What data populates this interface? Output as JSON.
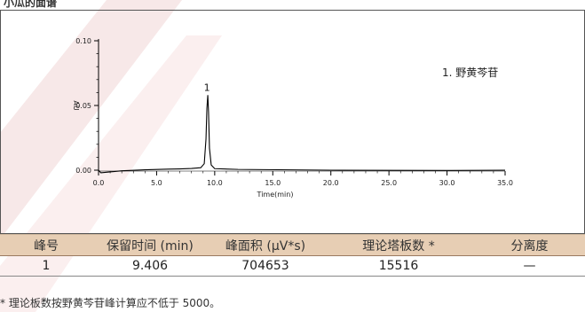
{
  "header": {
    "partial_title": "小瓜的面谱"
  },
  "chart_data": {
    "type": "line",
    "xlabel": "Time(min)",
    "ylabel": "AU",
    "xlim": [
      0,
      35
    ],
    "ylim": [
      0,
      0.1
    ],
    "x_ticks": [
      "0.0",
      "5.0",
      "10.0",
      "15.0",
      "20.0",
      "25.0",
      "30.0",
      "35.0"
    ],
    "y_ticks": [
      "0.00",
      "0.05",
      "0.10"
    ],
    "peak_label": "1",
    "legend": "1.  野黄芩苷",
    "series": [
      {
        "x": [
          0,
          0.2,
          2,
          4,
          6,
          7,
          8,
          8.8,
          9.1,
          9.25,
          9.33,
          9.406,
          9.47,
          9.55,
          9.7,
          10.0,
          12,
          20,
          30,
          35
        ],
        "y": [
          0,
          -0.002,
          -0.0005,
          0.0003,
          0.0008,
          0.001,
          0.0013,
          0.0019,
          0.005,
          0.024,
          0.048,
          0.058,
          0.045,
          0.017,
          0.004,
          0.0012,
          0.0006,
          0.0,
          -0.0002,
          0.0
        ]
      }
    ]
  },
  "table": {
    "headers": [
      "峰号",
      "保留时间 (min)",
      "峰面积 (µV*s)",
      "理论塔板数 *",
      "分离度"
    ],
    "rows": [
      [
        "1",
        "9.406",
        "704653",
        "15516",
        "—"
      ]
    ]
  },
  "footnote": "* 理论板数按野黄芩苷峰计算应不低于 5000。",
  "colors": {
    "table_header_bg": "#e7ceb4",
    "watermark": "#f6e6e6",
    "trace": "#000000"
  }
}
